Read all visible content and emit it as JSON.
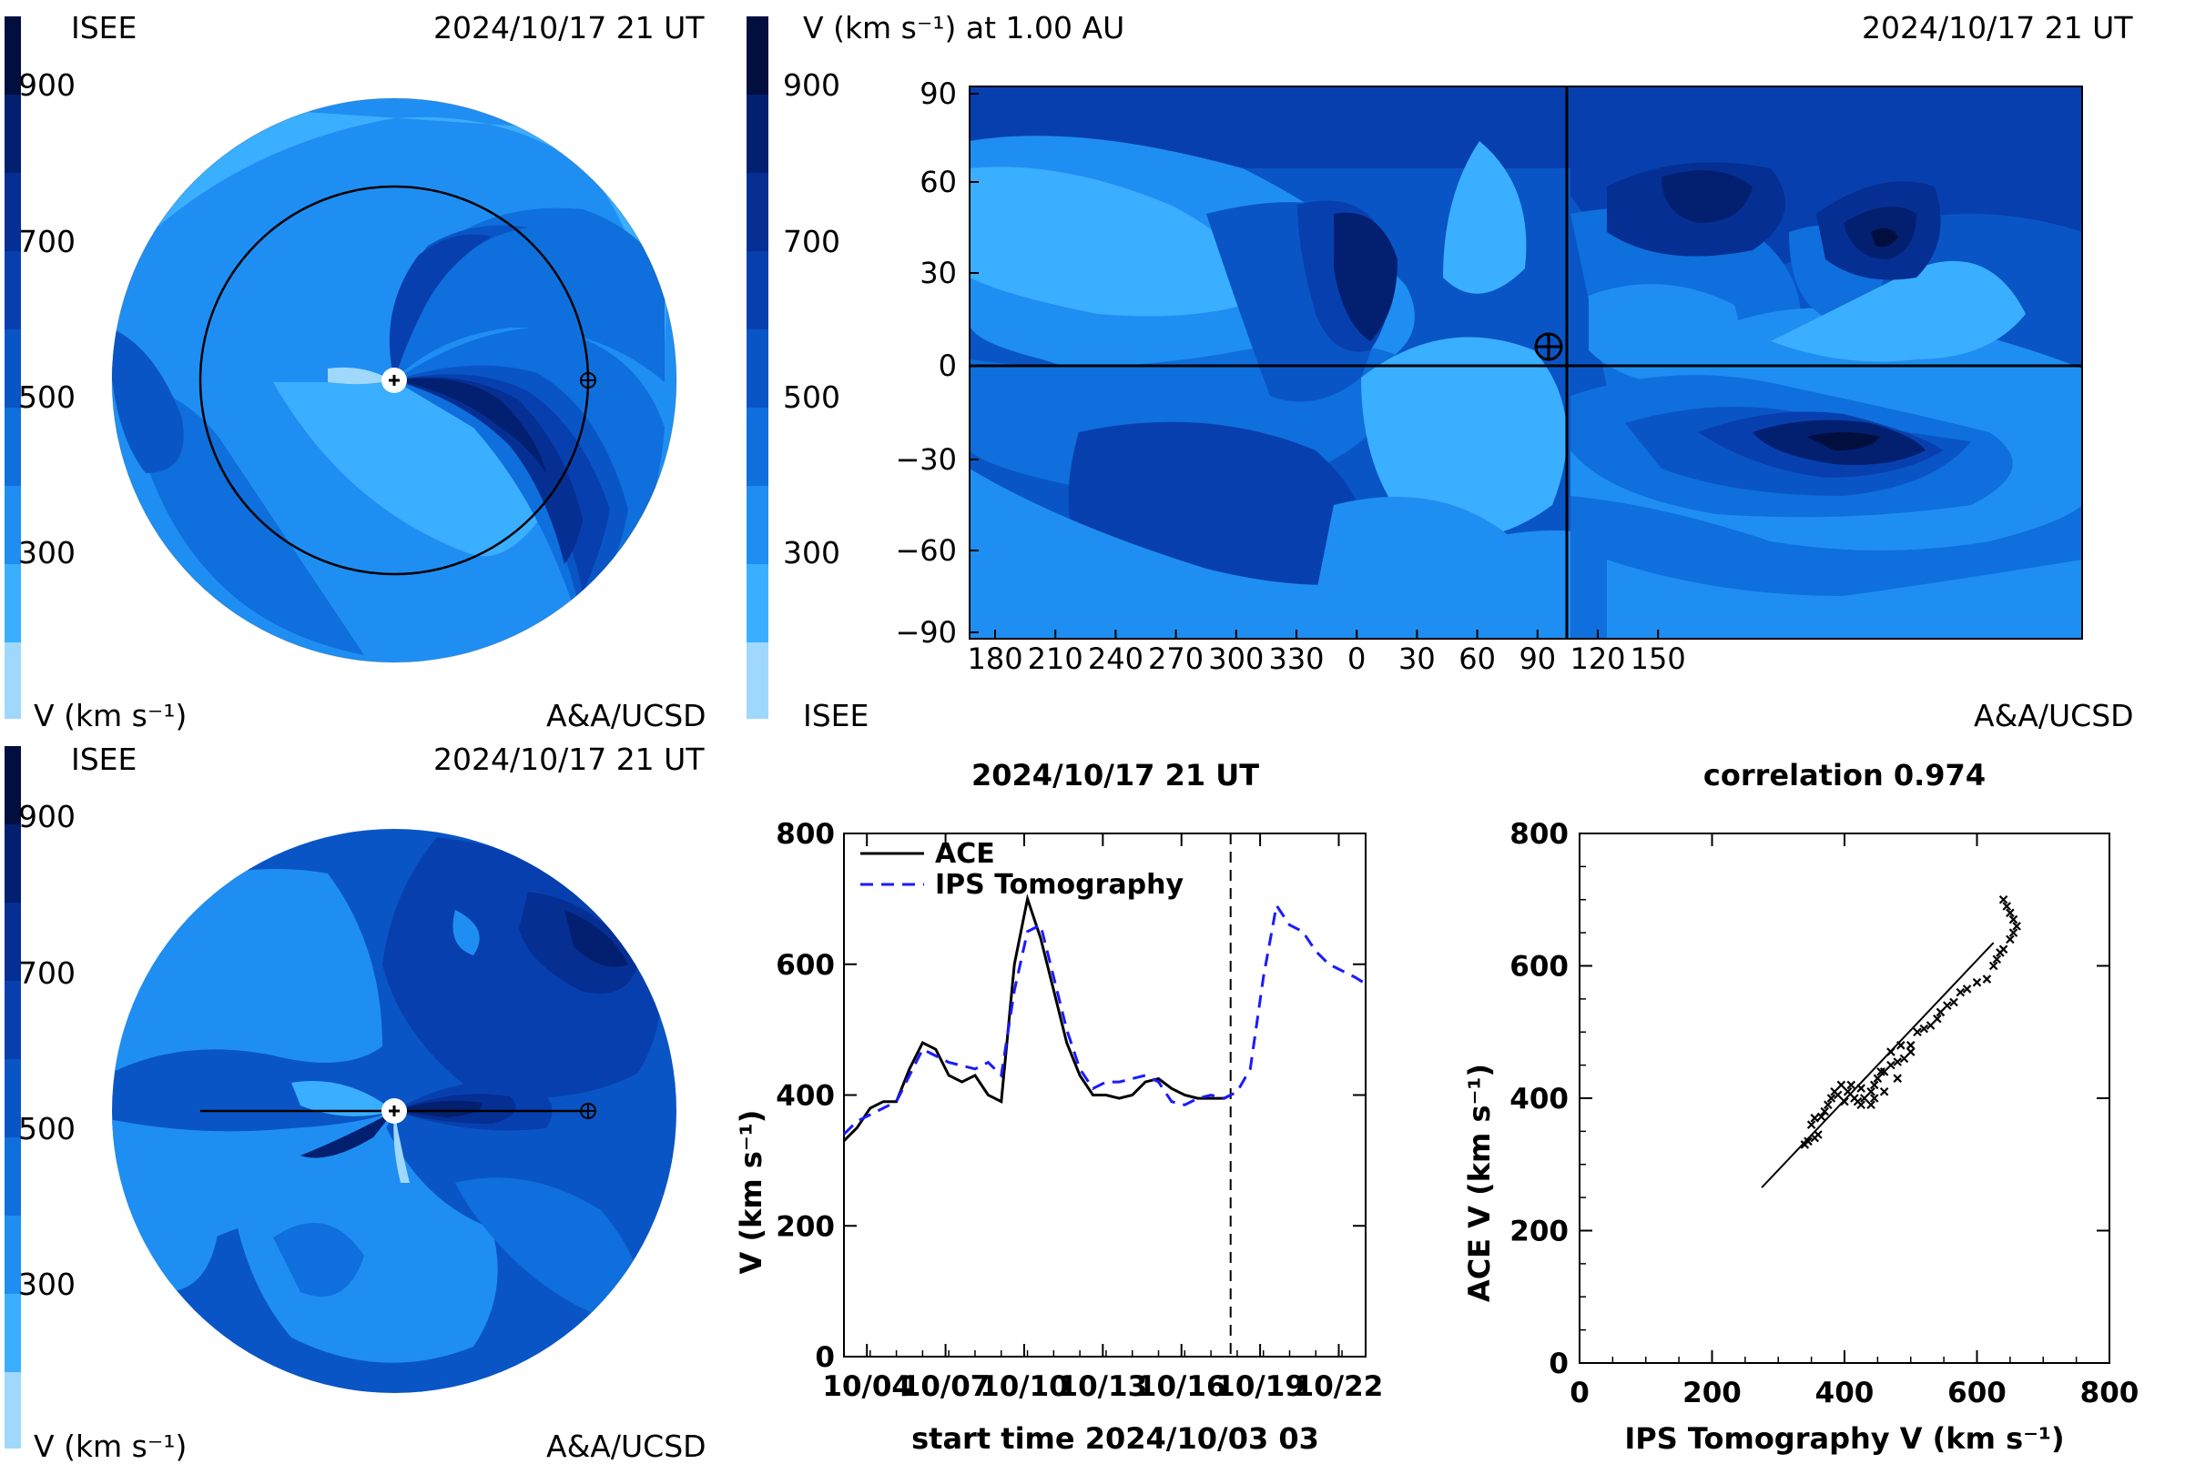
{
  "colors": {
    "v100": "#9fd8fb",
    "v200": "#3aaeff",
    "v300": "#1f8ef2",
    "v400": "#0f6fdc",
    "v500": "#0a55c6",
    "v600": "#0740ae",
    "v700": "#052f93",
    "v800": "#031f70",
    "v900": "#020f3e"
  },
  "colorbar": {
    "ticks": [
      "900",
      "700",
      "500",
      "300"
    ]
  },
  "top_left": {
    "org": "ISEE",
    "time": "2024/10/17 21 UT",
    "cb_label": "V (km s⁻¹)",
    "credit": "A&A/UCSD"
  },
  "bottom_left": {
    "org": "ISEE",
    "time": "2024/10/17 21 UT",
    "cb_label": "V (km s⁻¹)",
    "credit": "A&A/UCSD"
  },
  "map": {
    "title": "V (km s⁻¹) at 1.00 AU",
    "time": "2024/10/17 21 UT",
    "org": "ISEE",
    "credit": "A&A/UCSD",
    "yticks": [
      "90",
      "60",
      "30",
      "0",
      "−30",
      "−60",
      "−90"
    ],
    "xticks": [
      "180",
      "210",
      "240",
      "270",
      "300",
      "330",
      "0",
      "30",
      "60",
      "90",
      "120",
      "150"
    ]
  },
  "chart_data": [
    {
      "type": "line",
      "title": "2024/10/17 21 UT",
      "xlabel": "start time 2024/10/03 03",
      "ylabel": "V (km s⁻¹)",
      "ylim": [
        0,
        800
      ],
      "yticks": [
        0,
        200,
        400,
        600,
        800
      ],
      "xlim_days": [
        0,
        19.9
      ],
      "xticks": [
        "10/04",
        "10/07",
        "10/10",
        "10/13",
        "10/16",
        "10/19",
        "10/22"
      ],
      "xtick_days": [
        0.875,
        3.875,
        6.875,
        9.875,
        12.875,
        15.875,
        18.875
      ],
      "now_day": 14.75,
      "series": [
        {
          "name": "ACE",
          "style": "solid",
          "color": "#000000",
          "x": [
            0,
            0.5,
            1,
            1.5,
            2,
            2.5,
            3,
            3.5,
            4,
            4.5,
            5,
            5.5,
            6,
            6.5,
            7,
            7.5,
            8,
            8.5,
            9,
            9.5,
            10,
            10.5,
            11,
            11.5,
            12,
            12.5,
            13,
            13.5,
            14,
            14.5,
            14.75
          ],
          "values": [
            330,
            350,
            380,
            390,
            390,
            440,
            480,
            470,
            430,
            420,
            430,
            400,
            390,
            600,
            700,
            640,
            560,
            480,
            430,
            400,
            400,
            395,
            400,
            420,
            425,
            410,
            400,
            395,
            395,
            395,
            400
          ]
        },
        {
          "name": "IPS Tomography",
          "style": "dashed",
          "color": "#1a1aff",
          "x": [
            0,
            0.5,
            1,
            1.5,
            2,
            2.5,
            3,
            3.5,
            4,
            4.5,
            5,
            5.5,
            6,
            6.5,
            7,
            7.5,
            8,
            8.5,
            9,
            9.5,
            10,
            10.5,
            11,
            11.5,
            12,
            12.5,
            13,
            13.5,
            14,
            14.5,
            15,
            15.5,
            16,
            16.5,
            17,
            17.5,
            18,
            18.5,
            19,
            19.5,
            19.9
          ],
          "values": [
            340,
            360,
            370,
            380,
            390,
            430,
            470,
            460,
            450,
            445,
            440,
            450,
            430,
            560,
            650,
            660,
            580,
            500,
            440,
            410,
            420,
            420,
            425,
            430,
            420,
            390,
            385,
            395,
            400,
            395,
            405,
            440,
            580,
            690,
            660,
            650,
            620,
            600,
            590,
            580,
            570
          ]
        }
      ]
    },
    {
      "type": "scatter",
      "title": "correlation 0.974",
      "xlabel": "IPS Tomography V (km s⁻¹)",
      "ylabel": "ACE V (km s⁻¹)",
      "xlim": [
        0,
        800
      ],
      "ylim": [
        0,
        800
      ],
      "xticks": [
        0,
        200,
        400,
        600,
        800
      ],
      "yticks": [
        0,
        200,
        400,
        600,
        800
      ],
      "fit": [
        [
          275,
          265
        ],
        [
          625,
          635
        ]
      ],
      "points": [
        [
          340,
          330
        ],
        [
          345,
          335
        ],
        [
          355,
          340
        ],
        [
          360,
          345
        ],
        [
          350,
          360
        ],
        [
          355,
          370
        ],
        [
          365,
          372
        ],
        [
          370,
          380
        ],
        [
          375,
          390
        ],
        [
          380,
          400
        ],
        [
          385,
          410
        ],
        [
          395,
          420
        ],
        [
          410,
          420
        ],
        [
          425,
          415
        ],
        [
          430,
          400
        ],
        [
          420,
          395
        ],
        [
          400,
          395
        ],
        [
          390,
          405
        ],
        [
          405,
          410
        ],
        [
          415,
          400
        ],
        [
          440,
          410
        ],
        [
          445,
          420
        ],
        [
          450,
          430
        ],
        [
          460,
          440
        ],
        [
          470,
          450
        ],
        [
          480,
          455
        ],
        [
          490,
          460
        ],
        [
          500,
          470
        ],
        [
          485,
          480
        ],
        [
          470,
          470
        ],
        [
          455,
          440
        ],
        [
          445,
          400
        ],
        [
          440,
          390
        ],
        [
          425,
          390
        ],
        [
          460,
          410
        ],
        [
          480,
          430
        ],
        [
          500,
          480
        ],
        [
          510,
          500
        ],
        [
          520,
          505
        ],
        [
          530,
          510
        ],
        [
          540,
          520
        ],
        [
          545,
          530
        ],
        [
          555,
          540
        ],
        [
          565,
          545
        ],
        [
          575,
          560
        ],
        [
          585,
          565
        ],
        [
          600,
          575
        ],
        [
          615,
          580
        ],
        [
          625,
          600
        ],
        [
          630,
          610
        ],
        [
          635,
          620
        ],
        [
          640,
          625
        ],
        [
          650,
          640
        ],
        [
          655,
          650
        ],
        [
          660,
          660
        ],
        [
          655,
          670
        ],
        [
          650,
          680
        ],
        [
          645,
          690
        ],
        [
          640,
          700
        ]
      ]
    }
  ]
}
